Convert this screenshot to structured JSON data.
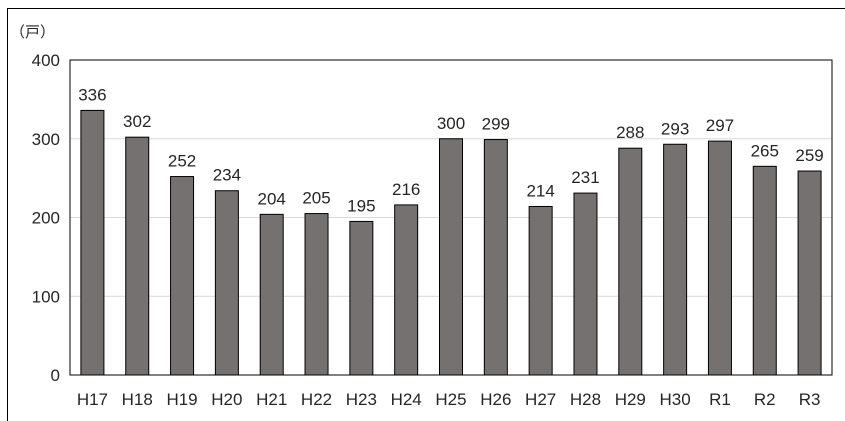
{
  "chart_data": {
    "type": "bar",
    "unit_label": "（戸）",
    "categories": [
      "H17",
      "H18",
      "H19",
      "H20",
      "H21",
      "H22",
      "H23",
      "H24",
      "H25",
      "H26",
      "H27",
      "H28",
      "H29",
      "H30",
      "R1",
      "R2",
      "R3"
    ],
    "values": [
      336,
      302,
      252,
      234,
      204,
      205,
      195,
      216,
      300,
      299,
      214,
      231,
      288,
      293,
      297,
      265,
      259
    ],
    "ylim": [
      0,
      400
    ],
    "yticks": [
      0,
      100,
      200,
      300,
      400
    ],
    "grid": true,
    "bar_color": "#767171",
    "bar_edge_color": "#000000",
    "gridline_color": "#d9d9d9"
  }
}
